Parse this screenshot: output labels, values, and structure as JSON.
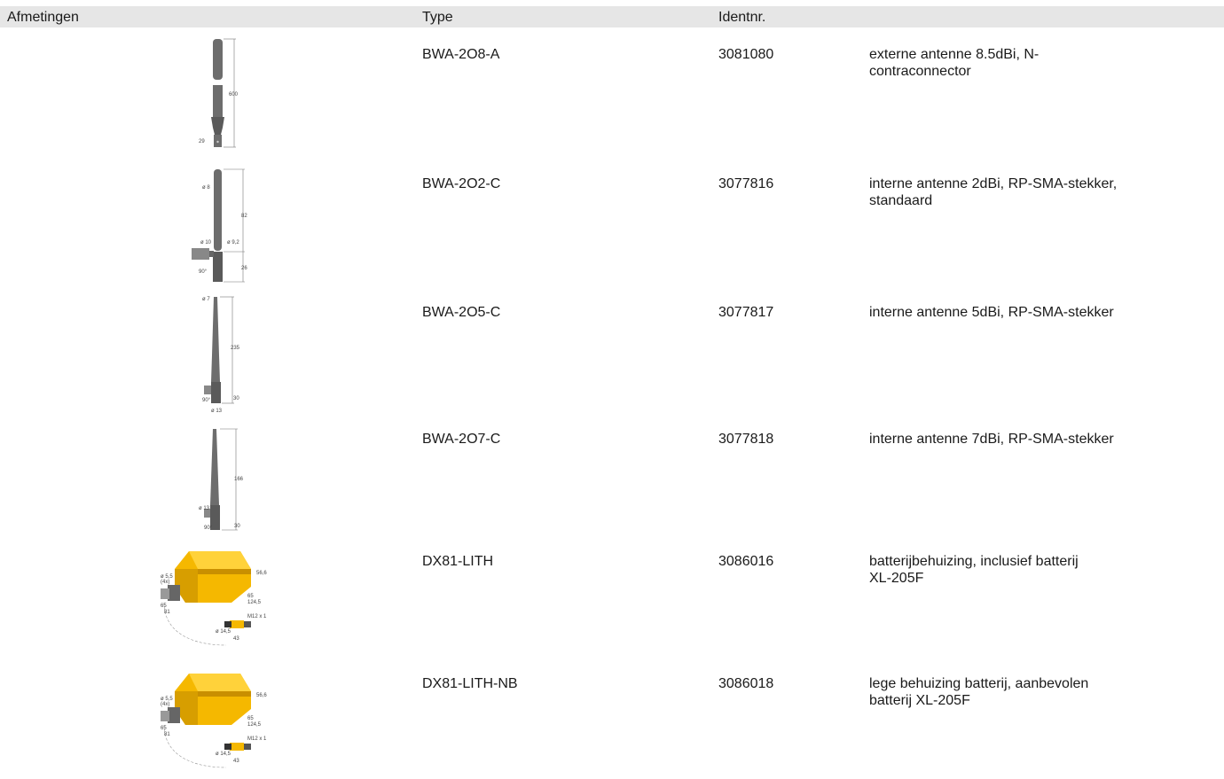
{
  "header": {
    "dimensions": "Afmetingen",
    "type": "Type",
    "ident": "Identnr."
  },
  "rows": [
    {
      "type": "BWA-2O8-A",
      "ident": "3081080",
      "description": [
        "externe antenne 8.5dBi, N-",
        "contraconnector"
      ],
      "dims": [
        "600",
        "29"
      ]
    },
    {
      "type": "BWA-2O2-C",
      "ident": "3077816",
      "description": [
        "interne antenne 2dBi, RP-SMA-stekker,",
        "standaard"
      ],
      "dims": [
        "ø 8",
        "82",
        "ø 10",
        "ø 9,2",
        "26",
        "90°"
      ]
    },
    {
      "type": "BWA-2O5-C",
      "ident": "3077817",
      "description": [
        "interne antenne 5dBi, RP-SMA-stekker"
      ],
      "dims": [
        "ø 7",
        "235",
        "90°",
        "30",
        "ø 13"
      ]
    },
    {
      "type": "BWA-2O7-C",
      "ident": "3077818",
      "description": [
        "interne antenne 7dBi, RP-SMA-stekker"
      ],
      "dims": [
        "166",
        "ø 13",
        "90°",
        "30"
      ]
    },
    {
      "type": "DX81-LITH",
      "ident": "3086016",
      "description": [
        "batterijbehuizing, inclusief batterij",
        "XL-205F"
      ],
      "dims": [
        "ø 5,5",
        "(4x)",
        "56,6",
        "65",
        "124,5",
        "65",
        "81",
        "M12 x 1",
        "ø 14,5",
        "43"
      ]
    },
    {
      "type": "DX81-LITH-NB",
      "ident": "3086018",
      "description": [
        "lege behuizing batterij, aanbevolen",
        "batterij XL-205F"
      ],
      "dims": [
        "ø 5,5",
        "(4x)",
        "56,6",
        "65",
        "124,5",
        "65",
        "81",
        "M12 x 1",
        "ø 14,5",
        "43"
      ]
    }
  ],
  "colors": {
    "header_bg": "#e6e6e6",
    "antenna": "#6d6d6d",
    "housing": "#f5b800"
  }
}
